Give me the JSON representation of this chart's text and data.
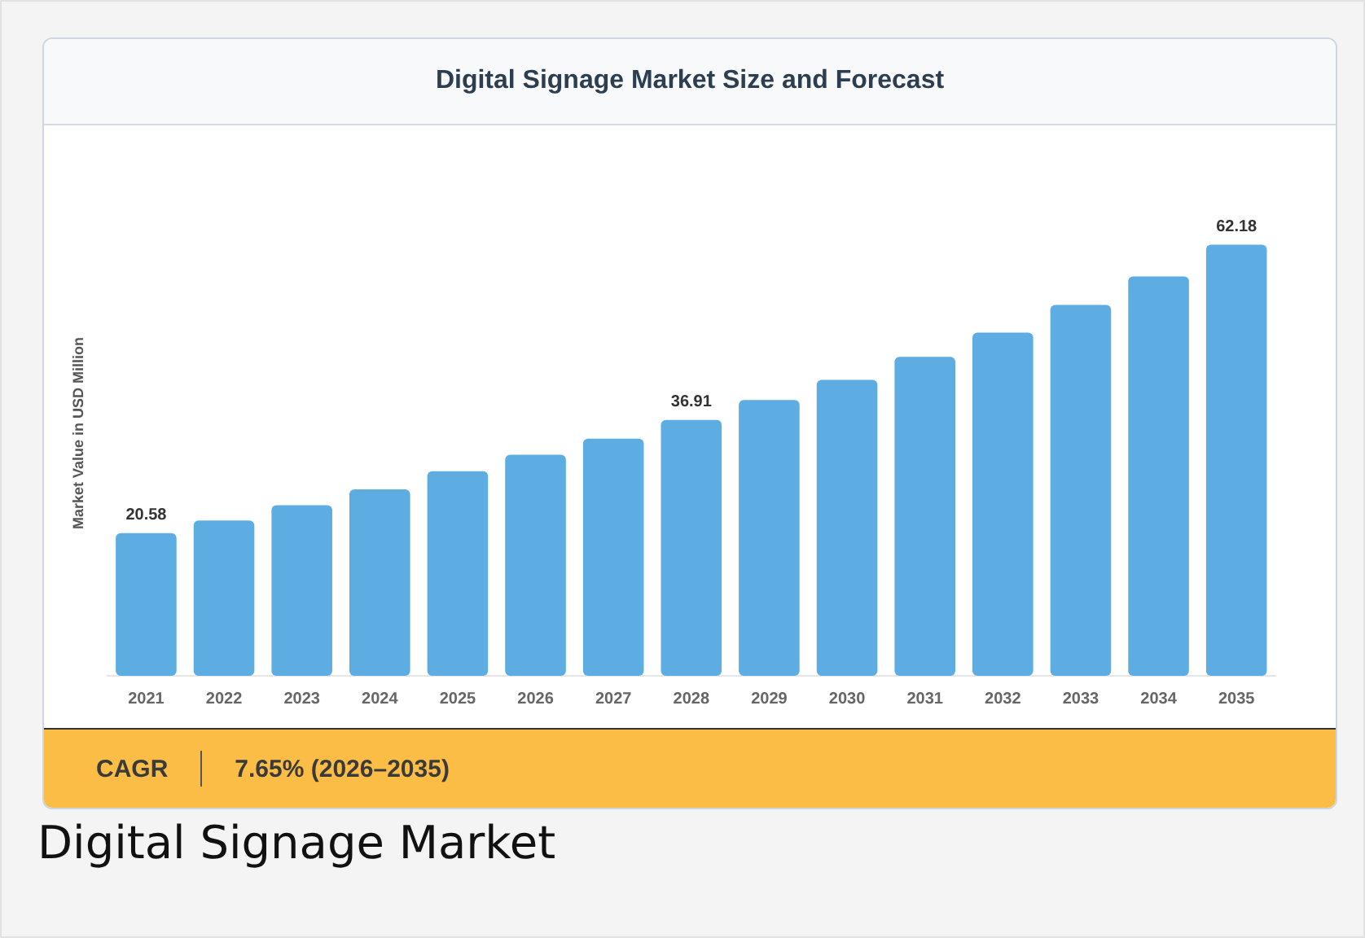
{
  "chart_data": {
    "type": "bar",
    "title": "Digital Signage Market Size and Forecast",
    "ylabel": "Market Value in USD Million",
    "categories": [
      "2021",
      "2022",
      "2023",
      "2024",
      "2025",
      "2026",
      "2027",
      "2028",
      "2029",
      "2030",
      "2031",
      "2032",
      "2033",
      "2034",
      "2035"
    ],
    "values": [
      20.58,
      22.4,
      24.6,
      26.9,
      29.5,
      31.9,
      34.2,
      36.91,
      39.8,
      42.7,
      46.0,
      49.5,
      53.5,
      57.6,
      62.18
    ],
    "value_labels": [
      "20.58",
      null,
      null,
      null,
      null,
      null,
      null,
      "36.91",
      null,
      null,
      null,
      null,
      null,
      null,
      "62.18"
    ],
    "color": "#5dade2",
    "grid": false,
    "legend": false,
    "tick_labels": "x",
    "annotations": [
      "CAGR",
      "7.65% (2026–2035)",
      "Digital Signage Market"
    ]
  }
}
